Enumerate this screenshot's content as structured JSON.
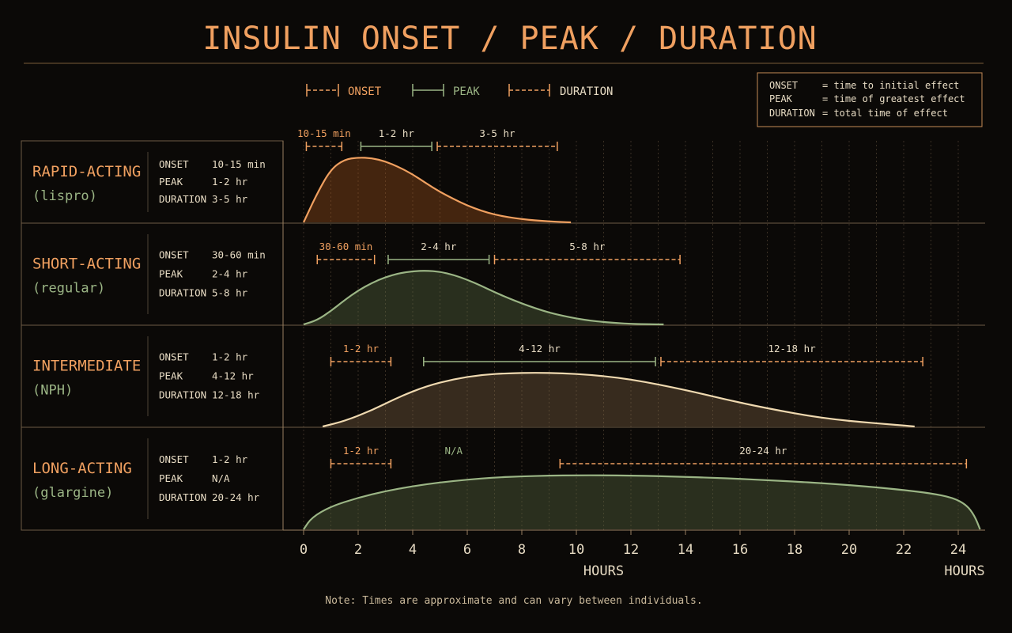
{
  "title": "INSULIN ONSET / PEAK / DURATION",
  "colors": {
    "bg": "#0b0907",
    "orange": "#f0a060",
    "green": "#9bb585",
    "cream": "#efd9b0",
    "text": "#e8dcc4",
    "divider": "#7a6a54"
  },
  "legend": {
    "onset": "ONSET",
    "peak": "PEAK",
    "duration": "DURATION"
  },
  "definitions": [
    {
      "term": "ONSET",
      "text": "= time to initial effect"
    },
    {
      "term": "PEAK",
      "text": "= time of greatest effect"
    },
    {
      "term": "DURATION",
      "text": "= total time of effect"
    }
  ],
  "chart_data": {
    "type": "area",
    "xlim": [
      0,
      24
    ],
    "x_ticks": [
      "0",
      "2",
      "4",
      "6",
      "8",
      "10",
      "12",
      "14",
      "16",
      "18",
      "20",
      "22",
      "24"
    ],
    "xlabel": "HOURS",
    "xlabel_end": "HOURS",
    "grid": "vertical dotted lines every hour",
    "series": [
      {
        "name": "RAPID-ACTING",
        "sub": "(lispro)",
        "color": "orange",
        "onset": "10-15 min",
        "peak": "1-2 hr",
        "duration": "3-5 hr",
        "onset_range": [
          0.1,
          1.4
        ],
        "peak_range": [
          2.1,
          4.7
        ],
        "duration_range": [
          4.9,
          9.3
        ],
        "curve": [
          [
            0,
            0
          ],
          [
            0.5,
            0.45
          ],
          [
            1,
            0.82
          ],
          [
            1.5,
            0.97
          ],
          [
            2,
            1
          ],
          [
            2.5,
            0.99
          ],
          [
            3,
            0.94
          ],
          [
            3.5,
            0.85
          ],
          [
            4,
            0.74
          ],
          [
            4.5,
            0.6
          ],
          [
            5,
            0.47
          ],
          [
            5.5,
            0.36
          ],
          [
            6,
            0.26
          ],
          [
            6.5,
            0.18
          ],
          [
            7,
            0.12
          ],
          [
            7.5,
            0.08
          ],
          [
            8,
            0.05
          ],
          [
            8.5,
            0.03
          ],
          [
            9,
            0.015
          ],
          [
            9.5,
            0.005
          ],
          [
            9.8,
            0
          ]
        ]
      },
      {
        "name": "SHORT-ACTING",
        "sub": "(regular)",
        "color": "green",
        "onset": "30-60 min",
        "peak": "2-4 hr",
        "duration": "5-8 hr",
        "onset_range": [
          0.5,
          2.6
        ],
        "peak_range": [
          3.1,
          6.8
        ],
        "duration_range": [
          7.0,
          13.8
        ],
        "curve": [
          [
            0,
            0
          ],
          [
            0.5,
            0.08
          ],
          [
            1,
            0.25
          ],
          [
            1.5,
            0.45
          ],
          [
            2,
            0.63
          ],
          [
            2.5,
            0.77
          ],
          [
            3,
            0.88
          ],
          [
            3.5,
            0.95
          ],
          [
            4,
            0.99
          ],
          [
            4.5,
            1
          ],
          [
            5,
            0.98
          ],
          [
            5.5,
            0.92
          ],
          [
            6,
            0.83
          ],
          [
            6.5,
            0.72
          ],
          [
            7,
            0.6
          ],
          [
            7.5,
            0.49
          ],
          [
            8,
            0.39
          ],
          [
            8.5,
            0.3
          ],
          [
            9,
            0.22
          ],
          [
            9.5,
            0.16
          ],
          [
            10,
            0.11
          ],
          [
            10.5,
            0.07
          ],
          [
            11,
            0.045
          ],
          [
            11.5,
            0.025
          ],
          [
            12,
            0.01
          ],
          [
            12.5,
            0.004
          ],
          [
            13.2,
            0
          ]
        ]
      },
      {
        "name": "INTERMEDIATE",
        "sub": "(NPH)",
        "color": "cream",
        "onset": "1-2 hr",
        "peak": "4-12 hr",
        "duration": "12-18 hr",
        "onset_range": [
          1.0,
          3.2
        ],
        "peak_range": [
          4.4,
          12.9
        ],
        "duration_range": [
          13.1,
          22.7
        ],
        "curve": [
          [
            0.7,
            0
          ],
          [
            1.5,
            0.1
          ],
          [
            2.5,
            0.3
          ],
          [
            3.5,
            0.55
          ],
          [
            4.5,
            0.75
          ],
          [
            5.5,
            0.88
          ],
          [
            6.5,
            0.96
          ],
          [
            7.5,
            0.99
          ],
          [
            8.5,
            1
          ],
          [
            9.5,
            0.99
          ],
          [
            10.5,
            0.96
          ],
          [
            11.5,
            0.91
          ],
          [
            12.5,
            0.83
          ],
          [
            13.5,
            0.73
          ],
          [
            14.5,
            0.62
          ],
          [
            15.5,
            0.5
          ],
          [
            16.5,
            0.39
          ],
          [
            17.5,
            0.29
          ],
          [
            18.5,
            0.2
          ],
          [
            19.5,
            0.13
          ],
          [
            20.5,
            0.08
          ],
          [
            21.5,
            0.04
          ],
          [
            22.4,
            0
          ]
        ]
      },
      {
        "name": "LONG-ACTING",
        "sub": "(glargine)",
        "color": "green",
        "onset": "1-2 hr",
        "peak": "N/A",
        "duration": "20-24 hr",
        "onset_range": [
          1.0,
          3.2
        ],
        "peak_range": null,
        "duration_range": [
          9.4,
          24.3
        ],
        "curve": [
          [
            0,
            0
          ],
          [
            0.3,
            0.22
          ],
          [
            1,
            0.42
          ],
          [
            2,
            0.58
          ],
          [
            3,
            0.7
          ],
          [
            4,
            0.79
          ],
          [
            5,
            0.86
          ],
          [
            6,
            0.91
          ],
          [
            7,
            0.95
          ],
          [
            8,
            0.97
          ],
          [
            9,
            0.985
          ],
          [
            10,
            0.99
          ],
          [
            11,
            0.99
          ],
          [
            12,
            0.985
          ],
          [
            13,
            0.975
          ],
          [
            14,
            0.96
          ],
          [
            15,
            0.945
          ],
          [
            16,
            0.925
          ],
          [
            17,
            0.9
          ],
          [
            18,
            0.875
          ],
          [
            19,
            0.845
          ],
          [
            20,
            0.81
          ],
          [
            21,
            0.77
          ],
          [
            22,
            0.72
          ],
          [
            23,
            0.66
          ],
          [
            23.8,
            0.58
          ],
          [
            24.3,
            0.45
          ],
          [
            24.6,
            0.25
          ],
          [
            24.8,
            0
          ]
        ]
      }
    ]
  },
  "row_labels": {
    "onset": "ONSET",
    "peak": "PEAK",
    "duration": "DURATION"
  },
  "note": "Note: Times are approximate and can vary between individuals."
}
